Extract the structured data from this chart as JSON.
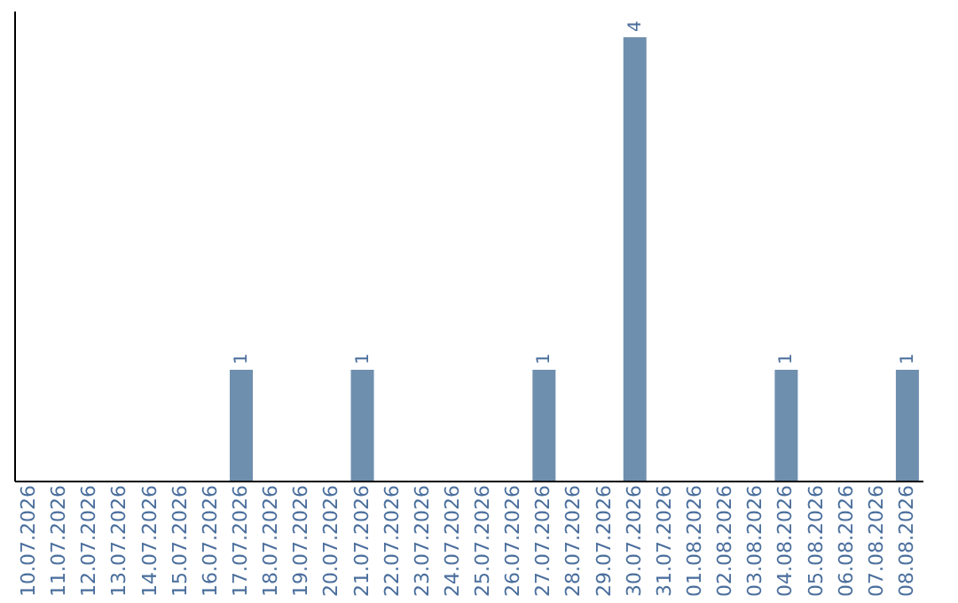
{
  "chart_data": {
    "type": "bar",
    "categories": [
      "10.07.2026",
      "11.07.2026",
      "12.07.2026",
      "13.07.2026",
      "14.07.2026",
      "15.07.2026",
      "16.07.2026",
      "17.07.2026",
      "18.07.2026",
      "19.07.2026",
      "20.07.2026",
      "21.07.2026",
      "22.07.2026",
      "23.07.2026",
      "24.07.2026",
      "25.07.2026",
      "26.07.2026",
      "27.07.2026",
      "28.07.2026",
      "29.07.2026",
      "30.07.2026",
      "31.07.2026",
      "01.08.2026",
      "02.08.2026",
      "03.08.2026",
      "04.08.2026",
      "05.08.2026",
      "06.08.2026",
      "07.08.2026",
      "08.08.2026"
    ],
    "values": [
      0,
      0,
      0,
      0,
      0,
      0,
      0,
      1,
      0,
      0,
      0,
      1,
      0,
      0,
      0,
      0,
      0,
      1,
      0,
      0,
      4,
      0,
      0,
      0,
      0,
      1,
      0,
      0,
      0,
      1
    ],
    "color": "#6f8fae",
    "value_labels": [
      null,
      null,
      null,
      null,
      null,
      null,
      null,
      "1",
      null,
      null,
      null,
      "1",
      null,
      null,
      null,
      null,
      null,
      "1",
      null,
      null,
      "4",
      null,
      null,
      null,
      null,
      "1",
      null,
      null,
      null,
      "1"
    ],
    "grid": false
  }
}
